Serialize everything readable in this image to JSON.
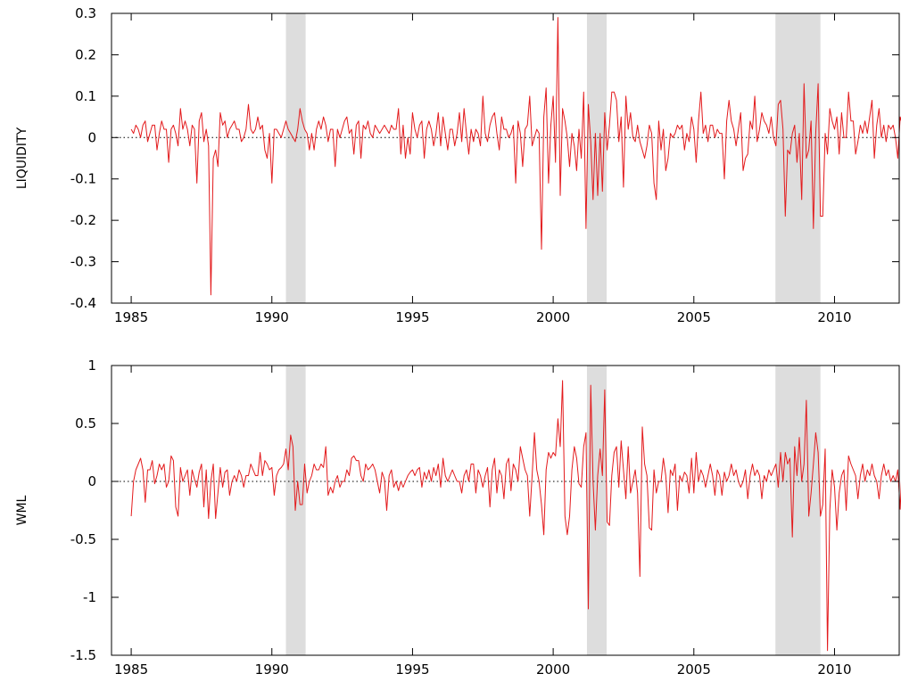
{
  "chart_data": [
    {
      "type": "line",
      "ylabel": "LIQUIDITY",
      "xlabel": "",
      "xlim": [
        1984.3,
        2012.3
      ],
      "ylim": [
        -0.4,
        0.3
      ],
      "xticks": [
        1985,
        1990,
        1995,
        2000,
        2005,
        2010
      ],
      "xtick_labels": [
        "1985",
        "1990",
        "1995",
        "2000",
        "2005",
        "2010"
      ],
      "yticks": [
        -0.4,
        -0.3,
        -0.2,
        -0.1,
        0,
        0.1,
        0.2,
        0.3
      ],
      "ytick_labels": [
        "-0.4",
        "-0.3",
        "-0.2",
        "-0.1",
        "0",
        "0.1",
        "0.2",
        "0.3"
      ],
      "zero_line": "dotted",
      "grid": false,
      "series": [
        {
          "color": "#e31a1c",
          "start": 1985.0,
          "step": 0.0833333,
          "values": [
            0.02,
            0.01,
            0.03,
            0.02,
            0.0,
            0.03,
            0.04,
            -0.01,
            0.01,
            0.03,
            0.03,
            -0.03,
            0.01,
            0.04,
            0.02,
            0.02,
            -0.06,
            0.02,
            0.03,
            0.01,
            -0.02,
            0.07,
            0.02,
            0.04,
            0.02,
            -0.02,
            0.03,
            0.02,
            -0.11,
            0.04,
            0.06,
            -0.01,
            0.02,
            -0.02,
            -0.38,
            -0.05,
            -0.03,
            -0.07,
            0.06,
            0.03,
            0.04,
            0.0,
            0.02,
            0.03,
            0.04,
            0.02,
            0.02,
            -0.01,
            0.0,
            0.02,
            0.08,
            0.02,
            0.01,
            0.02,
            0.05,
            0.02,
            0.03,
            -0.03,
            -0.05,
            0.01,
            -0.11,
            0.02,
            0.02,
            0.01,
            0.0,
            0.02,
            0.04,
            0.02,
            0.01,
            0.0,
            -0.01,
            0.02,
            0.07,
            0.04,
            0.02,
            0.01,
            -0.03,
            0.01,
            -0.03,
            0.02,
            0.04,
            0.02,
            0.05,
            0.03,
            -0.01,
            0.02,
            0.02,
            -0.07,
            0.02,
            0.0,
            0.02,
            0.04,
            0.05,
            0.01,
            0.02,
            -0.04,
            0.03,
            0.04,
            -0.05,
            0.03,
            0.02,
            0.04,
            0.01,
            0.0,
            0.03,
            0.02,
            0.01,
            0.02,
            0.03,
            0.02,
            0.01,
            0.03,
            0.02,
            0.02,
            0.07,
            -0.04,
            0.03,
            -0.05,
            0.0,
            -0.04,
            0.06,
            0.02,
            0.0,
            0.03,
            0.04,
            -0.05,
            0.02,
            0.04,
            0.02,
            -0.02,
            0.01,
            0.06,
            -0.02,
            0.05,
            0.01,
            -0.03,
            0.02,
            0.02,
            -0.02,
            0.01,
            0.06,
            -0.01,
            0.07,
            0.01,
            -0.04,
            0.02,
            -0.01,
            0.02,
            0.01,
            -0.02,
            0.1,
            0.01,
            -0.01,
            0.03,
            0.05,
            0.06,
            0.01,
            -0.03,
            0.05,
            0.02,
            0.02,
            0.0,
            0.01,
            0.03,
            -0.11,
            0.04,
            0.01,
            -0.07,
            0.02,
            0.03,
            0.1,
            -0.02,
            0.0,
            0.02,
            0.01,
            -0.27,
            0.05,
            0.12,
            -0.11,
            0.03,
            0.1,
            -0.06,
            0.29,
            -0.14,
            0.07,
            0.04,
            0.0,
            -0.07,
            0.01,
            -0.02,
            -0.08,
            0.02,
            -0.05,
            0.11,
            -0.22,
            0.08,
            -0.01,
            -0.15,
            0.01,
            -0.14,
            0.01,
            -0.13,
            0.06,
            -0.03,
            0.03,
            0.11,
            0.11,
            0.09,
            -0.01,
            0.05,
            -0.12,
            0.1,
            0.02,
            0.06,
            0.0,
            -0.01,
            0.03,
            -0.01,
            -0.03,
            -0.05,
            -0.02,
            0.03,
            0.01,
            -0.11,
            -0.15,
            0.04,
            -0.03,
            0.02,
            -0.08,
            -0.05,
            0.01,
            0.0,
            0.01,
            0.03,
            0.02,
            0.03,
            -0.03,
            0.01,
            -0.01,
            0.05,
            0.02,
            -0.06,
            0.04,
            0.11,
            0.01,
            0.03,
            -0.01,
            0.03,
            0.03,
            0.0,
            0.02,
            0.01,
            0.01,
            -0.1,
            0.04,
            0.09,
            0.04,
            0.02,
            -0.02,
            0.02,
            0.06,
            -0.08,
            -0.05,
            -0.04,
            0.04,
            0.02,
            0.1,
            -0.01,
            0.02,
            0.06,
            0.04,
            0.03,
            0.01,
            0.05,
            0.0,
            -0.02,
            0.08,
            0.09,
            0.02,
            -0.19,
            -0.03,
            -0.04,
            0.01,
            0.03,
            -0.06,
            0.01,
            -0.15,
            0.13,
            -0.05,
            -0.03,
            0.04,
            -0.22,
            0.01,
            0.13,
            -0.19,
            -0.19,
            0.01,
            -0.04,
            0.07,
            0.04,
            0.02,
            0.05,
            -0.04,
            0.06,
            0.0,
            0.0,
            0.11,
            0.04,
            0.04,
            -0.04,
            -0.01,
            0.03,
            0.01,
            0.04,
            0.01,
            0.05,
            0.09,
            -0.05,
            0.03,
            0.07,
            0.0,
            0.03,
            -0.01,
            0.03,
            0.02,
            0.03,
            0.0,
            -0.05,
            0.05,
            0.03,
            -0.01,
            0.06
          ]
        }
      ],
      "shaded_periods": [
        [
          1990.5,
          1991.2
        ],
        [
          2001.2,
          2001.9
        ],
        [
          2007.9,
          2009.5
        ]
      ],
      "shade_color": "#dddddd"
    },
    {
      "type": "line",
      "ylabel": "WML",
      "xlabel": "",
      "xlim": [
        1984.3,
        2012.3
      ],
      "ylim": [
        -1.5,
        1
      ],
      "xticks": [
        1985,
        1990,
        1995,
        2000,
        2005,
        2010
      ],
      "xtick_labels": [
        "1985",
        "1990",
        "1995",
        "2000",
        "2005",
        "2010"
      ],
      "yticks": [
        -1.5,
        -1,
        -0.5,
        0,
        0.5,
        1
      ],
      "ytick_labels": [
        "-1.5",
        "-1",
        "-0.5",
        "0",
        "0.5",
        "1"
      ],
      "zero_line": "dotted",
      "grid": false,
      "series": [
        {
          "color": "#e31a1c",
          "start": 1985.0,
          "step": 0.0833333,
          "values": [
            -0.3,
            0.0,
            0.1,
            0.15,
            0.2,
            0.1,
            -0.18,
            0.1,
            0.1,
            0.18,
            -0.02,
            0.05,
            0.15,
            0.1,
            0.15,
            -0.05,
            0.0,
            0.22,
            0.18,
            -0.22,
            -0.3,
            0.12,
            0.0,
            0.05,
            0.1,
            -0.12,
            0.1,
            0.02,
            -0.05,
            0.08,
            0.15,
            -0.22,
            0.1,
            -0.32,
            0.0,
            0.15,
            -0.32,
            -0.1,
            0.12,
            -0.05,
            0.08,
            0.1,
            -0.12,
            0.0,
            0.05,
            0.0,
            0.1,
            0.05,
            -0.05,
            0.05,
            0.05,
            0.15,
            0.1,
            0.05,
            0.05,
            0.25,
            0.05,
            0.18,
            0.15,
            0.1,
            0.12,
            -0.12,
            0.05,
            0.1,
            0.12,
            0.15,
            0.28,
            0.1,
            0.4,
            0.3,
            -0.25,
            0.0,
            -0.2,
            -0.2,
            0.15,
            -0.1,
            0.0,
            0.05,
            0.15,
            0.1,
            0.1,
            0.15,
            0.12,
            0.3,
            -0.12,
            -0.05,
            -0.1,
            0.0,
            0.05,
            -0.05,
            0.0,
            0.0,
            0.1,
            0.05,
            0.2,
            0.22,
            0.18,
            0.18,
            0.05,
            0.0,
            0.15,
            0.1,
            0.12,
            0.15,
            0.1,
            0.0,
            -0.1,
            0.08,
            0.02,
            -0.25,
            0.05,
            0.1,
            -0.05,
            0.0,
            -0.08,
            0.0,
            -0.05,
            0.0,
            0.05,
            0.08,
            0.1,
            0.05,
            0.1,
            0.12,
            -0.05,
            0.08,
            0.02,
            0.1,
            0.0,
            0.12,
            0.05,
            0.15,
            -0.05,
            0.2,
            0.05,
            0.0,
            0.05,
            0.1,
            0.05,
            0.0,
            0.0,
            -0.1,
            0.05,
            0.1,
            0.0,
            0.15,
            0.15,
            -0.1,
            0.1,
            0.05,
            -0.05,
            0.05,
            0.12,
            -0.22,
            0.1,
            0.2,
            -0.1,
            0.1,
            0.05,
            -0.15,
            0.15,
            0.2,
            -0.08,
            0.15,
            0.1,
            0.0,
            0.3,
            0.2,
            0.1,
            0.05,
            -0.3,
            0.05,
            0.42,
            0.1,
            0.0,
            -0.2,
            -0.46,
            0.1,
            0.25,
            0.2,
            0.25,
            0.22,
            0.54,
            0.3,
            0.87,
            -0.3,
            -0.46,
            -0.3,
            0.1,
            0.3,
            0.2,
            -0.02,
            -0.05,
            0.3,
            0.42,
            -1.1,
            0.83,
            0.0,
            -0.42,
            0.05,
            0.28,
            0.05,
            0.79,
            -0.35,
            -0.38,
            0.05,
            0.25,
            0.3,
            -0.05,
            0.35,
            0.1,
            -0.15,
            0.3,
            -0.1,
            0.0,
            0.1,
            -0.1,
            -0.82,
            0.47,
            0.15,
            0.05,
            -0.4,
            -0.42,
            0.1,
            -0.1,
            0.0,
            0.0,
            0.2,
            0.05,
            -0.27,
            0.1,
            0.05,
            0.15,
            -0.25,
            0.05,
            0.0,
            0.08,
            0.05,
            -0.1,
            0.2,
            -0.1,
            0.25,
            0.0,
            0.1,
            0.05,
            -0.05,
            0.05,
            0.15,
            0.05,
            -0.12,
            0.1,
            0.05,
            -0.12,
            0.08,
            0.0,
            0.05,
            0.15,
            0.05,
            0.1,
            0.0,
            -0.05,
            0.0,
            0.1,
            -0.15,
            0.05,
            0.15,
            0.05,
            0.1,
            0.05,
            -0.15,
            0.05,
            0.0,
            0.1,
            0.05,
            0.1,
            0.15,
            -0.05,
            0.25,
            0.0,
            0.25,
            0.15,
            0.2,
            -0.48,
            0.3,
            0.05,
            0.38,
            0.0,
            0.15,
            0.7,
            -0.3,
            -0.1,
            0.15,
            0.42,
            0.25,
            -0.3,
            -0.2,
            0.28,
            -1.46,
            -0.25,
            0.1,
            -0.05,
            -0.42,
            -0.1,
            0.05,
            0.1,
            -0.25,
            0.22,
            0.15,
            0.1,
            0.05,
            -0.15,
            0.05,
            0.15,
            0.0,
            0.1,
            0.05,
            0.15,
            0.05,
            0.0,
            -0.15,
            0.05,
            0.15,
            0.05,
            0.1,
            0.0,
            0.05,
            0.0,
            0.1,
            -0.24,
            0.22,
            0.1
          ]
        }
      ],
      "shaded_periods": [
        [
          1990.5,
          1991.2
        ],
        [
          2001.2,
          2001.9
        ],
        [
          2007.9,
          2009.5
        ]
      ],
      "shade_color": "#dddddd"
    }
  ]
}
